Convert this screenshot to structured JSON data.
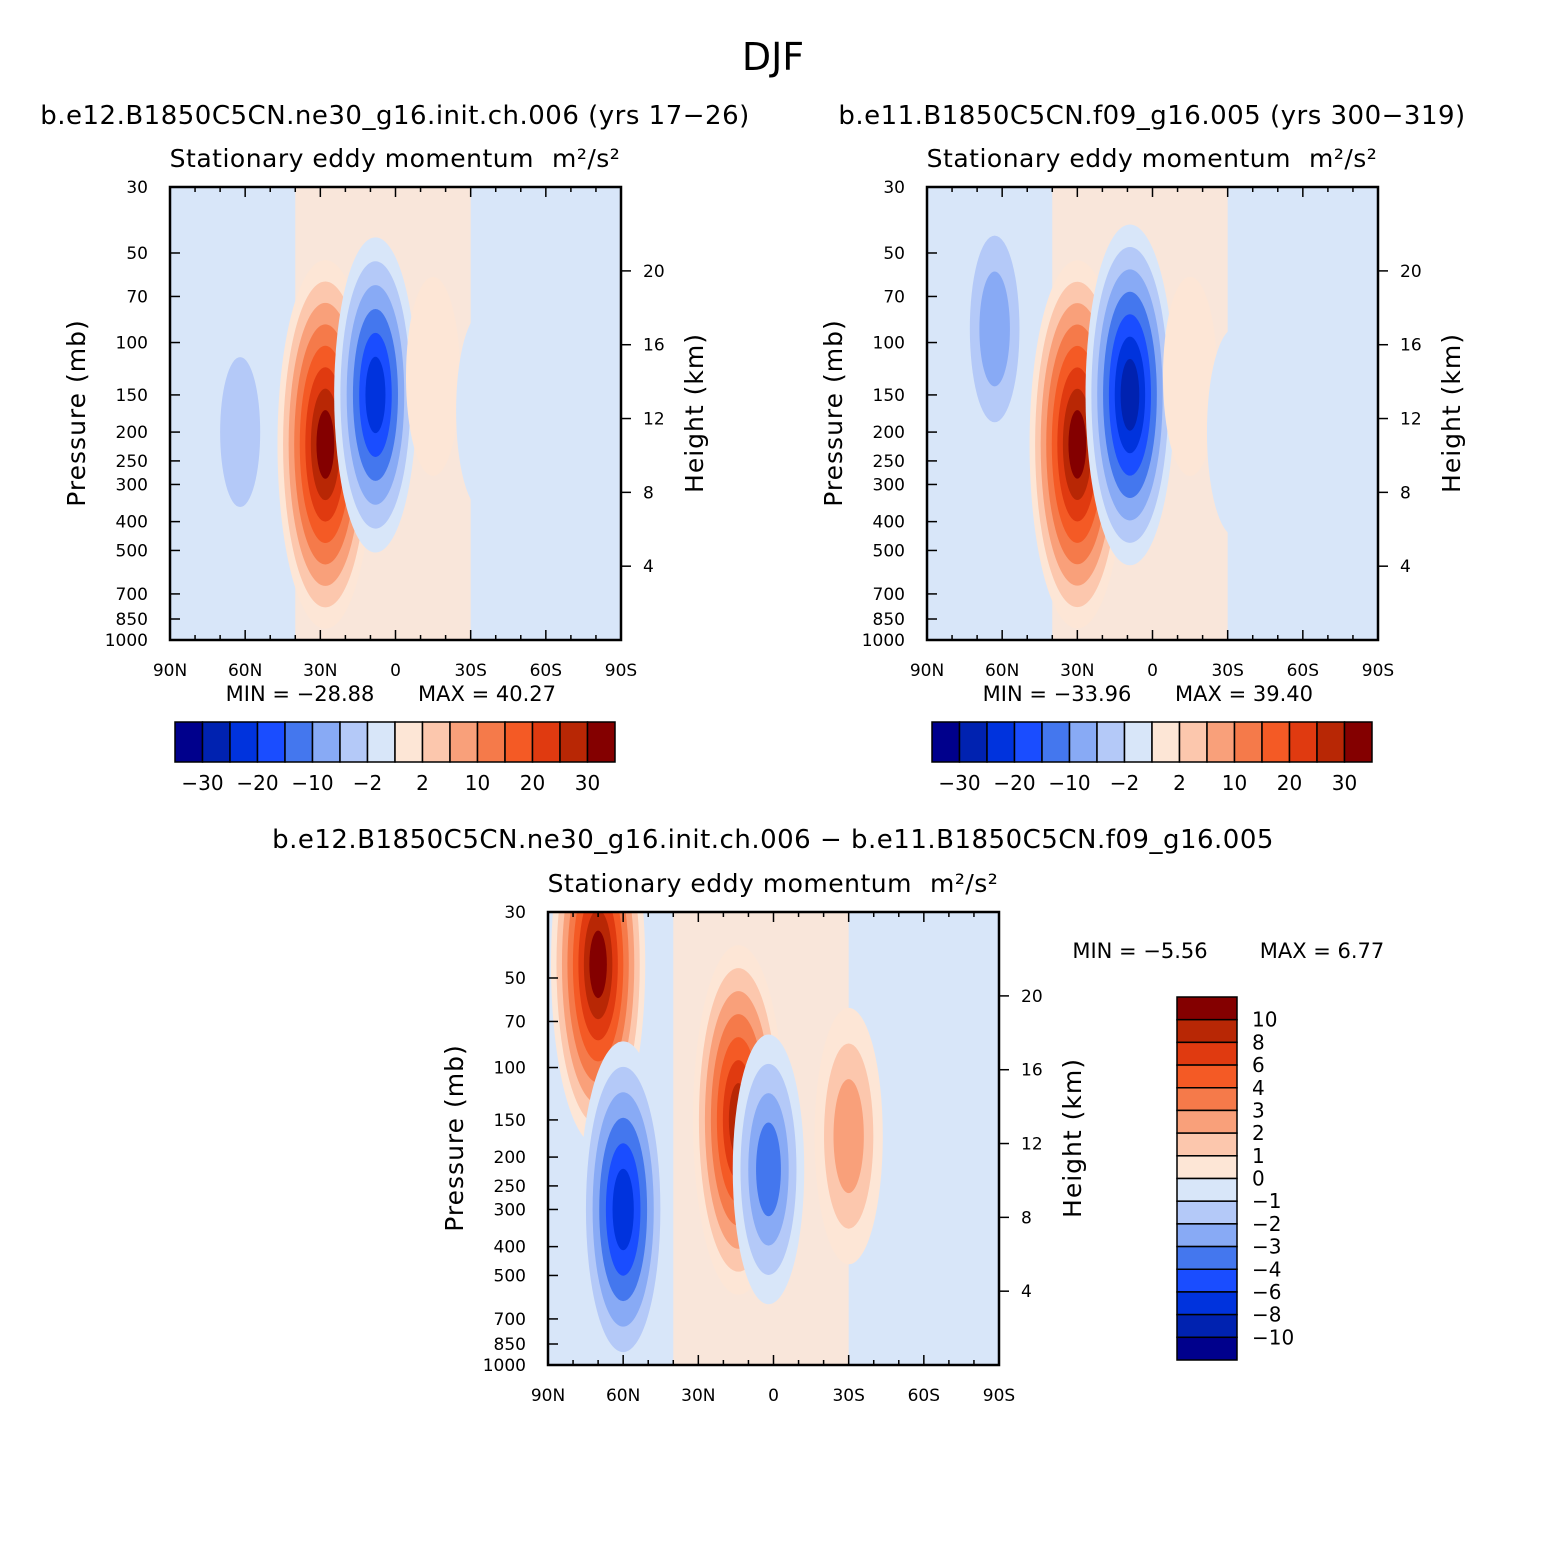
{
  "figure": {
    "season": "DJF",
    "panel_titles": {
      "model": "b.e12.B1850C5CN.ne30_g16.init.ch.006 (yrs 17−26)",
      "control": "b.e11.B1850C5CN.f09_g16.005 (yrs 300−319)",
      "difference": "b.e12.B1850C5CN.ne30_g16.init.ch.006 − b.e11.B1850C5CN.f09_g16.005"
    },
    "subtitle_text": "Stationary eddy momentum",
    "subtitle_units": "m²/s²"
  },
  "chart_data": [
    {
      "type": "heatmap",
      "panel": "model",
      "title": "b.e12.B1850C5CN.ne30_g16.init.ch.006 (yrs 17−26)",
      "subtitle": "Stationary eddy momentum  m²/s²",
      "xlabel": "",
      "ylabel": "Pressure (mb)",
      "y2label": "Height (km)",
      "x_ticks": [
        "90N",
        "60N",
        "30N",
        "0",
        "30S",
        "60S",
        "90S"
      ],
      "x_range": [
        90,
        -90
      ],
      "y_ticks": [
        30,
        50,
        70,
        100,
        150,
        200,
        250,
        300,
        400,
        500,
        700,
        850,
        1000
      ],
      "y_range": [
        1000,
        30
      ],
      "y_scale": "log",
      "y2_ticks": [
        4,
        8,
        12,
        16,
        20
      ],
      "min_label": "MIN = −28.88",
      "max_label": "MAX = 40.27",
      "min": -28.88,
      "max": 40.27,
      "colorbar_labels": [
        "−30",
        "−20",
        "−10",
        "−2",
        "2",
        "10",
        "20",
        "30"
      ],
      "colorbar_placement": "bottom",
      "features": [
        {
          "lat": 62,
          "p": 200,
          "value": -12
        },
        {
          "lat": 28,
          "p": 220,
          "value": 40
        },
        {
          "lat": 8,
          "p": 150,
          "value": -28
        },
        {
          "lat": -15,
          "p": 130,
          "value": 2
        },
        {
          "lat": -35,
          "p": 170,
          "value": -2
        }
      ]
    },
    {
      "type": "heatmap",
      "panel": "control",
      "title": "b.e11.B1850C5CN.f09_g16.005 (yrs 300−319)",
      "subtitle": "Stationary eddy momentum  m²/s²",
      "xlabel": "",
      "ylabel": "Pressure (mb)",
      "y2label": "Height (km)",
      "x_ticks": [
        "90N",
        "60N",
        "30N",
        "0",
        "30S",
        "60S",
        "90S"
      ],
      "x_range": [
        90,
        -90
      ],
      "y_ticks": [
        30,
        50,
        70,
        100,
        150,
        200,
        250,
        300,
        400,
        500,
        700,
        850,
        1000
      ],
      "y_range": [
        1000,
        30
      ],
      "y_scale": "log",
      "y2_ticks": [
        4,
        8,
        12,
        16,
        20
      ],
      "min_label": "MIN = −33.96",
      "max_label": "MAX = 39.40",
      "min": -33.96,
      "max": 39.4,
      "colorbar_labels": [
        "−30",
        "−20",
        "−10",
        "−2",
        "2",
        "10",
        "20",
        "30"
      ],
      "colorbar_placement": "bottom",
      "features": [
        {
          "lat": 63,
          "p": 90,
          "value": -15
        },
        {
          "lat": 30,
          "p": 220,
          "value": 39
        },
        {
          "lat": 9,
          "p": 150,
          "value": -33
        },
        {
          "lat": -15,
          "p": 130,
          "value": 2
        },
        {
          "lat": -33,
          "p": 200,
          "value": -4
        }
      ]
    },
    {
      "type": "heatmap",
      "panel": "difference",
      "title": "b.e12.B1850C5CN.ne30_g16.init.ch.006 − b.e11.B1850C5CN.f09_g16.005",
      "subtitle": "Stationary eddy momentum  m²/s²",
      "xlabel": "",
      "ylabel": "Pressure (mb)",
      "y2label": "Height (km)",
      "x_ticks": [
        "90N",
        "60N",
        "30N",
        "0",
        "30S",
        "60S",
        "90S"
      ],
      "x_range": [
        90,
        -90
      ],
      "y_ticks": [
        30,
        50,
        70,
        100,
        150,
        200,
        250,
        300,
        400,
        500,
        700,
        850,
        1000
      ],
      "y_range": [
        1000,
        30
      ],
      "y_scale": "log",
      "y2_ticks": [
        4,
        8,
        12,
        16,
        20
      ],
      "min_label": "MIN = −5.56",
      "max_label": "MAX = 6.77",
      "min": -5.56,
      "max": 6.77,
      "colorbar_labels": [
        "10",
        "8",
        "6",
        "4",
        "3",
        "2",
        "1",
        "0",
        "−1",
        "−2",
        "−3",
        "−4",
        "−6",
        "−8",
        "−10"
      ],
      "colorbar_placement": "right",
      "features": [
        {
          "lat": 70,
          "p": 45,
          "value": 6.5
        },
        {
          "lat": 60,
          "p": 300,
          "value": -5.5
        },
        {
          "lat": 14,
          "p": 150,
          "value": 6
        },
        {
          "lat": 2,
          "p": 220,
          "value": -3
        },
        {
          "lat": -30,
          "p": 170,
          "value": 2.5
        }
      ]
    }
  ],
  "colors": {
    "main_palette": [
      "#00008c",
      "#0022b0",
      "#0033dd",
      "#1a4dff",
      "#4477ee",
      "#88aaf5",
      "#b4c9f8",
      "#d8e6f9",
      "#fde6d6",
      "#fcc7ad",
      "#f9a07a",
      "#f57a4a",
      "#f45a25",
      "#e03a10",
      "#b82705",
      "#840000"
    ],
    "diff_palette_top_to_bottom": [
      "#840000",
      "#b82705",
      "#e03a10",
      "#f45a25",
      "#f57a4a",
      "#f9a07a",
      "#fcc7ad",
      "#fde6d6",
      "#d8e6f9",
      "#b4c9f8",
      "#88aaf5",
      "#4477ee",
      "#1a4dff",
      "#0033dd",
      "#0022b0",
      "#00008c"
    ],
    "background_neg": "#d8e6f9",
    "background_pos": "#fde6d6"
  }
}
